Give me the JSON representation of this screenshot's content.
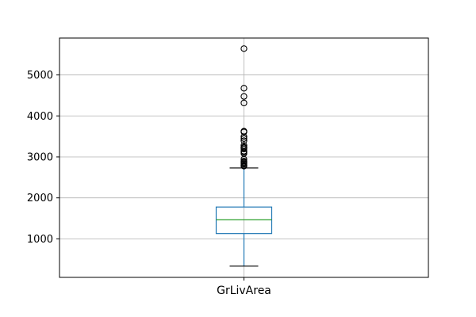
{
  "chart_data": {
    "type": "box",
    "categories": [
      "GrLivArea"
    ],
    "ylim": [
      60,
      5900
    ],
    "yticks": [
      1000,
      2000,
      3000,
      4000,
      5000
    ],
    "grid": true,
    "box": {
      "whisker_low": 334,
      "q1": 1130,
      "median": 1464,
      "q3": 1777,
      "whisker_high": 2730
    },
    "outliers": [
      2775,
      2784,
      2792,
      2822,
      2842,
      2868,
      2872,
      2898,
      2945,
      3082,
      3112,
      3138,
      3140,
      3194,
      3222,
      3228,
      3238,
      3279,
      3395,
      3447,
      3493,
      3608,
      3627,
      4316,
      4476,
      4676,
      5642
    ],
    "colors": {
      "box": "#1f77b4",
      "median": "#2ca02c",
      "whisker": "#1f77b4",
      "cap": "#000000",
      "outlier": "#000000",
      "grid": "#b0b0b0",
      "axes": "#000000"
    }
  }
}
